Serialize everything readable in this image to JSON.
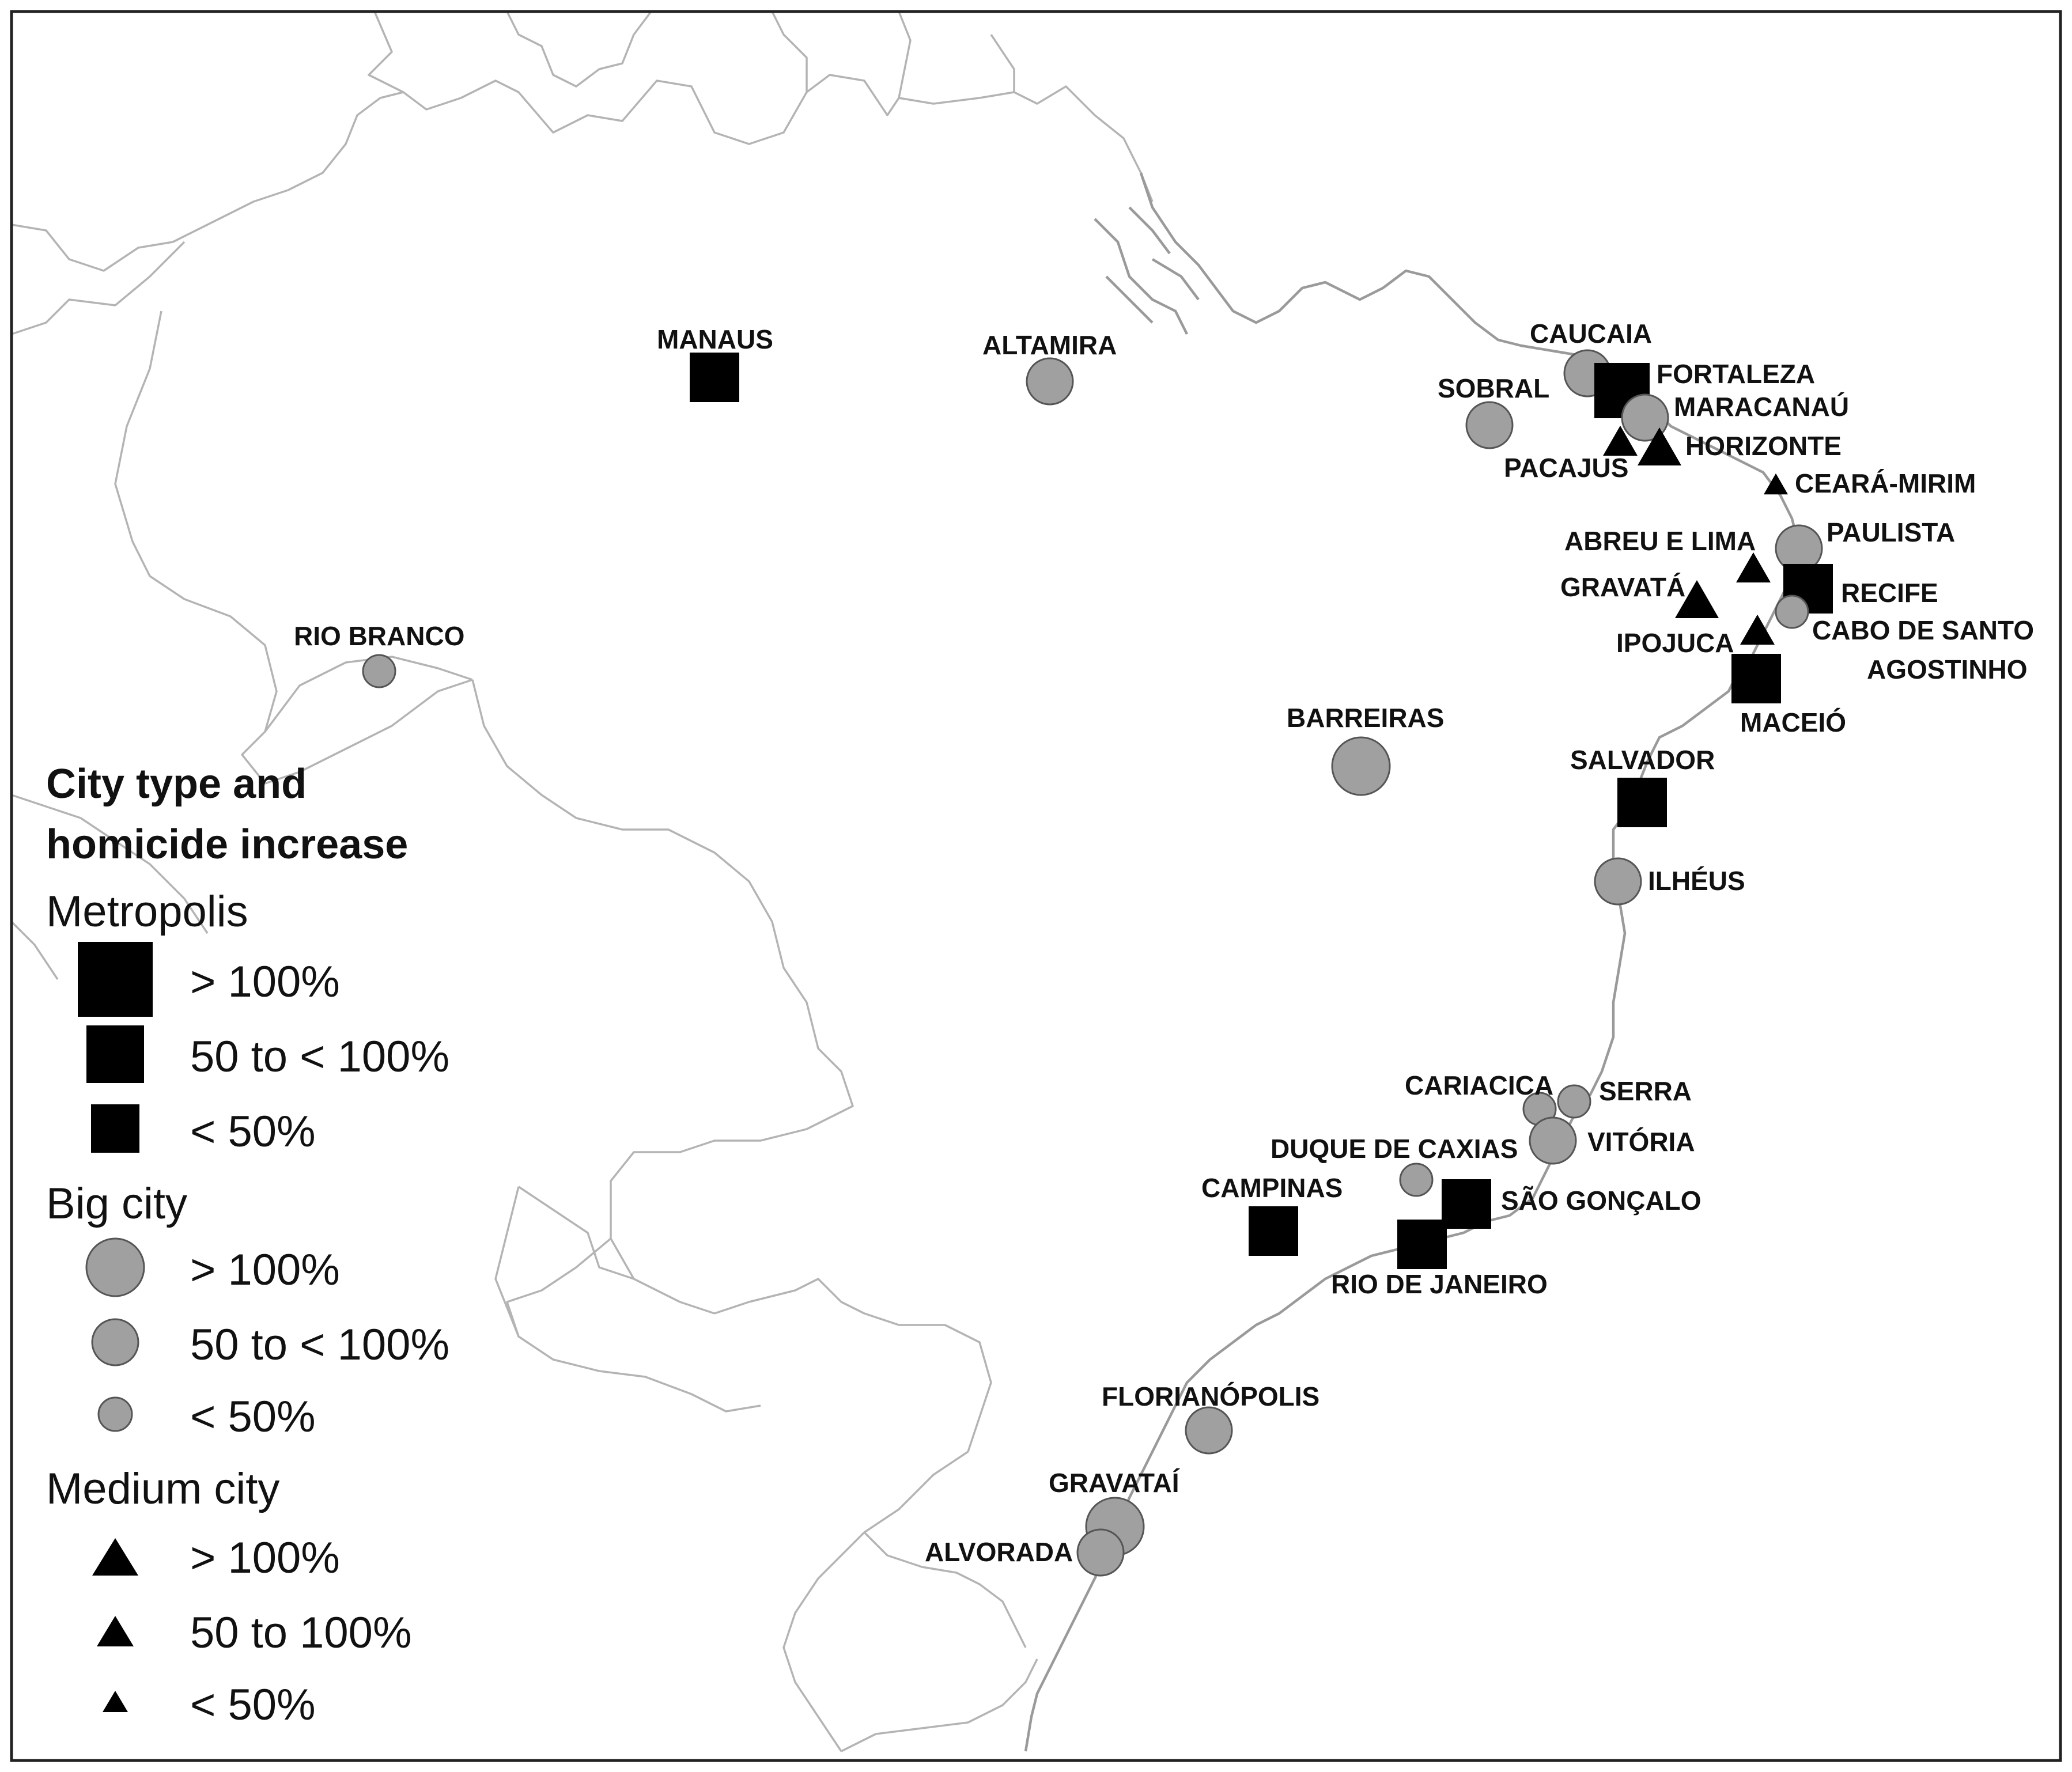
{
  "legend": {
    "title_line1": "City type and",
    "title_line2": "homicide increase",
    "groups": [
      {
        "name": "Metropolis",
        "symbol": "square",
        "items": [
          {
            "label": "> 100%",
            "size_rank": 3
          },
          {
            "label": "50 to < 100%",
            "size_rank": 2
          },
          {
            "label": "< 50%",
            "size_rank": 1
          }
        ]
      },
      {
        "name": "Big city",
        "symbol": "circle",
        "items": [
          {
            "label": "> 100%",
            "size_rank": 3
          },
          {
            "label": "50 to < 100%",
            "size_rank": 2
          },
          {
            "label": "< 50%",
            "size_rank": 1
          }
        ]
      },
      {
        "name": "Medium city",
        "symbol": "triangle",
        "items": [
          {
            "label": "> 100%",
            "size_rank": 3
          },
          {
            "label": "50 to 100%",
            "size_rank": 2
          },
          {
            "label": "< 50%",
            "size_rank": 1
          }
        ]
      }
    ]
  },
  "colors": {
    "metropolis": "#000000",
    "big_city_fill": "#a0a0a0",
    "big_city_stroke": "#555555",
    "medium_city": "#000000",
    "borders": "#b4b4b4",
    "coast": "#9a9a9a"
  },
  "cities": [
    {
      "name": "MANAUS",
      "type": "metropolis",
      "increase": "50 to < 100%"
    },
    {
      "name": "ALTAMIRA",
      "type": "big city",
      "increase": "50 to < 100%"
    },
    {
      "name": "CAUCAIA",
      "type": "big city",
      "increase": "50 to < 100%"
    },
    {
      "name": "FORTALEZA",
      "type": "metropolis",
      "increase": "> 100%"
    },
    {
      "name": "SOBRAL",
      "type": "big city",
      "increase": "50 to < 100%"
    },
    {
      "name": "MARACANAÚ",
      "type": "big city",
      "increase": "50 to < 100%"
    },
    {
      "name": "HORIZONTE",
      "type": "medium city",
      "increase": "> 100%"
    },
    {
      "name": "PACAJUS",
      "type": "medium city",
      "increase": "50 to 100%"
    },
    {
      "name": "CEARÁ-MIRIM",
      "type": "medium city",
      "increase": "< 50%"
    },
    {
      "name": "ABREU E LIMA",
      "type": "medium city",
      "increase": "50 to 100%"
    },
    {
      "name": "PAULISTA",
      "type": "big city",
      "increase": "50 to < 100%"
    },
    {
      "name": "GRAVATÁ",
      "type": "medium city",
      "increase": "> 100%"
    },
    {
      "name": "RECIFE",
      "type": "metropolis",
      "increase": "50 to < 100%"
    },
    {
      "name": "IPOJUCA",
      "type": "medium city",
      "increase": "50 to 100%"
    },
    {
      "name": "CABO DE SANTO AGOSTINHO",
      "type": "big city",
      "increase": "< 50%"
    },
    {
      "name": "MACEIÓ",
      "type": "metropolis",
      "increase": "50 to < 100%"
    },
    {
      "name": "RIO BRANCO",
      "type": "big city",
      "increase": "< 50%"
    },
    {
      "name": "BARREIRAS",
      "type": "big city",
      "increase": "> 100%"
    },
    {
      "name": "SALVADOR",
      "type": "metropolis",
      "increase": "50 to < 100%"
    },
    {
      "name": "ILHÉUS",
      "type": "big city",
      "increase": "50 to < 100%"
    },
    {
      "name": "CARIACICA",
      "type": "big city",
      "increase": "< 50%"
    },
    {
      "name": "SERRA",
      "type": "big city",
      "increase": "< 50%"
    },
    {
      "name": "VITÓRIA",
      "type": "big city",
      "increase": "50 to < 100%"
    },
    {
      "name": "DUQUE DE CAXIAS",
      "type": "big city",
      "increase": "< 50%"
    },
    {
      "name": "CAMPINAS",
      "type": "metropolis",
      "increase": "50 to < 100%"
    },
    {
      "name": "SÃO GONÇALO",
      "type": "metropolis",
      "increase": "50 to < 100%"
    },
    {
      "name": "RIO DE JANEIRO",
      "type": "metropolis",
      "increase": "50 to < 100%"
    },
    {
      "name": "FLORIANÓPOLIS",
      "type": "big city",
      "increase": "50 to < 100%"
    },
    {
      "name": "GRAVATAÍ",
      "type": "big city",
      "increase": "> 100%"
    },
    {
      "name": "ALVORADA",
      "type": "big city",
      "increase": "50 to < 100%"
    }
  ],
  "label_cabo_line1": "CABO DE SANTO",
  "label_cabo_line2": "AGOSTINHO"
}
